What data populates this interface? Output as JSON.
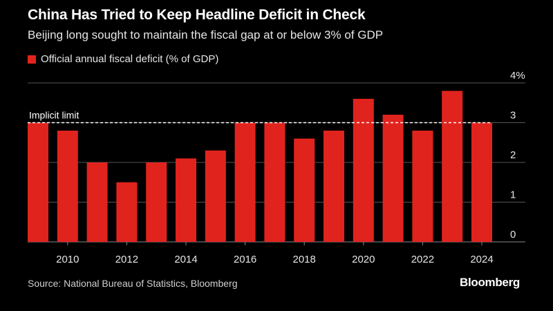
{
  "chart_data": {
    "type": "bar",
    "title": "China Has Tried to Keep Headline Deficit in Check",
    "subtitle": "Beijing long sought to maintain the fiscal gap at or below 3% of GDP",
    "series": [
      {
        "name": "Official annual fiscal deficit (% of GDP)",
        "color": "#e1231e",
        "categories": [
          2009,
          2010,
          2011,
          2012,
          2013,
          2014,
          2015,
          2016,
          2017,
          2018,
          2019,
          2020,
          2021,
          2022,
          2023,
          2024
        ],
        "values": [
          3.0,
          2.8,
          2.0,
          1.5,
          2.0,
          2.1,
          2.3,
          3.0,
          3.0,
          2.6,
          2.8,
          3.6,
          3.2,
          2.8,
          3.8,
          3.0
        ]
      }
    ],
    "x_ticks": [
      "2010",
      "2012",
      "2014",
      "2016",
      "2018",
      "2020",
      "2022",
      "2024"
    ],
    "y_ticks": [
      "0",
      "1",
      "2",
      "3",
      "4%"
    ],
    "ylim": [
      0,
      4
    ],
    "y_axis_side": "right",
    "grid": true,
    "reference_line": {
      "value": 3,
      "label": "Implicit limit",
      "style": "dashed"
    },
    "legend_position": "top-left"
  },
  "footer": {
    "source": "Source: National Bureau of Statistics, Bloomberg",
    "brand": "Bloomberg"
  }
}
